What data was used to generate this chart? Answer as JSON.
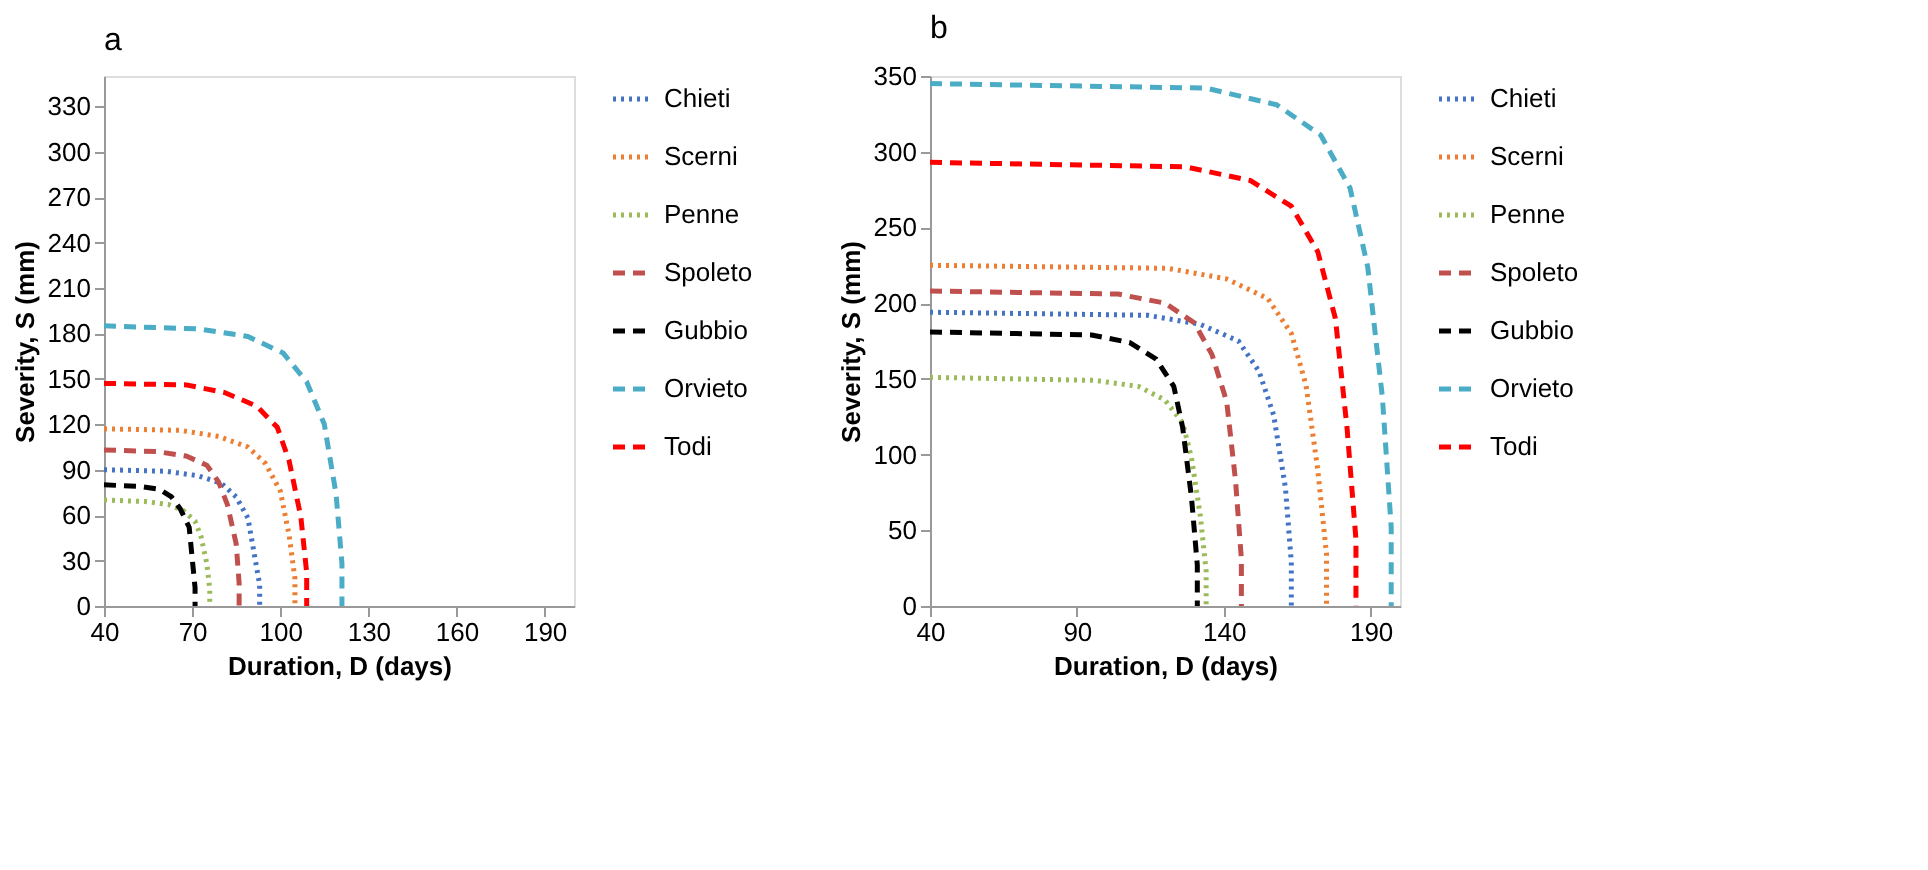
{
  "chart_data": [
    {
      "type": "line",
      "title": "a",
      "xlabel": "Duration, D (days)",
      "ylabel": "Severity, S (mm)",
      "xlim": [
        40,
        200
      ],
      "xticks": [
        40,
        70,
        100,
        130,
        160,
        190
      ],
      "ylim": [
        0,
        350
      ],
      "yticks": [
        0,
        30,
        60,
        90,
        120,
        150,
        180,
        210,
        240,
        270,
        300,
        330
      ],
      "grid": false,
      "legend": "right",
      "marker": "none",
      "series": [
        {
          "name": "Chieti",
          "color": "#4472c4",
          "line_style": "dotted",
          "x": [
            40,
            61,
            72,
            80,
            85,
            89,
            91,
            93,
            93
          ],
          "values": [
            90,
            89,
            86,
            81,
            72,
            58,
            36,
            14,
            0
          ]
        },
        {
          "name": "Scerni",
          "color": "#ed7d31",
          "line_style": "dotted",
          "x": [
            40,
            66,
            79,
            89,
            95,
            100,
            103,
            105,
            105
          ],
          "values": [
            117,
            116,
            112,
            105,
            94,
            76,
            47,
            18,
            0
          ]
        },
        {
          "name": "Penne",
          "color": "#9bbb59",
          "line_style": "dotted",
          "x": [
            40,
            54,
            62,
            67,
            71,
            73,
            75,
            76,
            76
          ],
          "values": [
            70,
            69,
            67,
            63,
            56,
            46,
            28,
            11,
            0
          ]
        },
        {
          "name": "Spoleto",
          "color": "#c0504d",
          "line_style": "dashed",
          "x": [
            40,
            58,
            68,
            75,
            79,
            82,
            85,
            86,
            86
          ],
          "values": [
            103,
            102,
            99,
            93,
            82,
            67,
            41,
            15,
            0
          ]
        },
        {
          "name": "Gubbio",
          "color": "#000000",
          "line_style": "dashed",
          "x": [
            40,
            52,
            59,
            63,
            66,
            69,
            70,
            71,
            71
          ],
          "values": [
            80,
            79,
            77,
            72,
            64,
            52,
            32,
            12,
            0
          ]
        },
        {
          "name": "Orvieto",
          "color": "#4bacc6",
          "line_style": "dashed",
          "x": [
            40,
            72,
            89,
            101,
            109,
            115,
            119,
            121,
            121
          ],
          "values": [
            185,
            183,
            178,
            167,
            148,
            120,
            74,
            28,
            0
          ]
        },
        {
          "name": "Todi",
          "color": "#ff0000",
          "line_style": "dashed",
          "x": [
            40,
            68,
            81,
            92,
            99,
            103,
            107,
            109,
            109
          ],
          "values": [
            147,
            146,
            141,
            132,
            118,
            96,
            59,
            22,
            0
          ]
        }
      ]
    },
    {
      "type": "line",
      "title": "b",
      "xlabel": "Duration, D (days)",
      "ylabel": "Severity, S (mm)",
      "xlim": [
        40,
        200
      ],
      "xticks": [
        40,
        90,
        140,
        190
      ],
      "ylim": [
        0,
        350
      ],
      "yticks": [
        0,
        50,
        100,
        150,
        200,
        250,
        300,
        350
      ],
      "grid": false,
      "legend": "right",
      "marker": "none",
      "series": [
        {
          "name": "Chieti",
          "color": "#4472c4",
          "line_style": "dotted",
          "x": [
            40,
            114,
            132,
            145,
            152,
            157,
            161,
            163,
            163
          ],
          "values": [
            194,
            192,
            186,
            175,
            155,
            126,
            78,
            29,
            0
          ]
        },
        {
          "name": "Scerni",
          "color": "#ed7d31",
          "line_style": "dotted",
          "x": [
            40,
            121,
            141,
            155,
            163,
            168,
            172,
            175,
            175
          ],
          "values": [
            225,
            223,
            216,
            203,
            180,
            146,
            90,
            34,
            0
          ]
        },
        {
          "name": "Penne",
          "color": "#9bbb59",
          "line_style": "dotted",
          "x": [
            40,
            96,
            111,
            120,
            126,
            129,
            132,
            134,
            134
          ],
          "values": [
            151,
            149,
            145,
            136,
            121,
            98,
            60,
            23,
            0
          ]
        },
        {
          "name": "Spoleto",
          "color": "#c0504d",
          "line_style": "dashed",
          "x": [
            40,
            104,
            120,
            130,
            136,
            141,
            144,
            146,
            146
          ],
          "values": [
            208,
            206,
            200,
            187,
            166,
            135,
            83,
            31,
            0
          ]
        },
        {
          "name": "Gubbio",
          "color": "#000000",
          "line_style": "dashed",
          "x": [
            40,
            95,
            108,
            117,
            123,
            126,
            129,
            131,
            131
          ],
          "values": [
            181,
            179,
            174,
            163,
            145,
            118,
            72,
            27,
            0
          ]
        },
        {
          "name": "Orvieto",
          "color": "#4bacc6",
          "line_style": "dashed",
          "x": [
            40,
            134,
            158,
            173,
            183,
            189,
            194,
            197,
            197
          ],
          "values": [
            345,
            342,
            331,
            311,
            276,
            224,
            138,
            52,
            0
          ]
        },
        {
          "name": "Todi",
          "color": "#ff0000",
          "line_style": "dashed",
          "x": [
            40,
            127,
            149,
            163,
            172,
            178,
            182,
            185,
            185
          ],
          "values": [
            293,
            290,
            281,
            264,
            234,
            190,
            117,
            44,
            0
          ]
        }
      ]
    }
  ]
}
